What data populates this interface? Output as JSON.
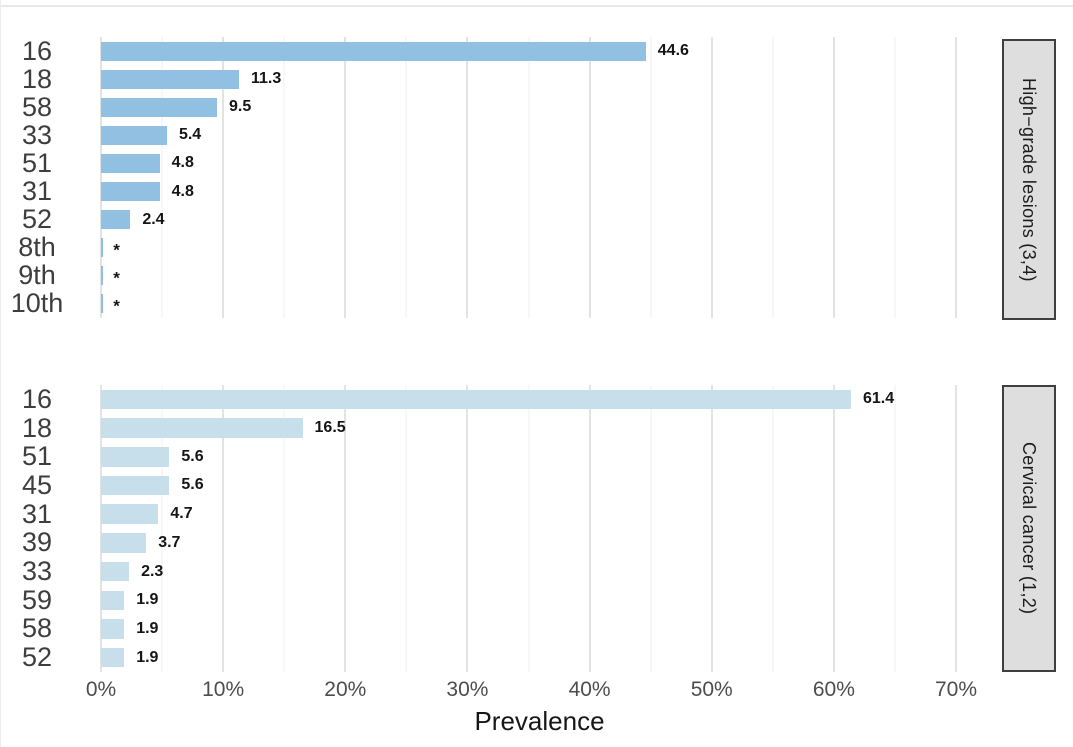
{
  "figure": {
    "xlabel": "Prevalence",
    "x_ticks": [
      "0%",
      "10%",
      "20%",
      "30%",
      "40%",
      "50%",
      "60%",
      "70%"
    ],
    "x_tick_values": [
      0,
      10,
      20,
      30,
      40,
      50,
      60,
      70
    ],
    "x_max": 71.8,
    "grid_minor_step": 5,
    "colors": {
      "bar_top_facet": "#92c0e3",
      "bar_bottom_facet": "#c7dfeb",
      "strip_background": "#dedede",
      "strip_border": "#3f3f3f",
      "gridline_major": "#e3e3e3",
      "gridline_minor": "#efefef",
      "category_text": "#3e3e3e",
      "tick_text": "#4d4d4d",
      "value_text": "#151515"
    }
  },
  "chart_data": [
    {
      "type": "bar",
      "orientation": "horizontal",
      "facet": "High−grade lesions (3,4)",
      "categories": [
        "16",
        "18",
        "58",
        "33",
        "51",
        "31",
        "52",
        "8th",
        "9th",
        "10th"
      ],
      "values": [
        44.6,
        11.3,
        9.5,
        5.4,
        4.8,
        4.8,
        2.4,
        null,
        null,
        null
      ],
      "bar_labels": [
        "44.6",
        "11.3",
        "9.5",
        "5.4",
        "4.8",
        "4.8",
        "2.4",
        "*",
        "*",
        "*"
      ],
      "bar_color": "#92c0e3",
      "xlabel": "Prevalence",
      "xlim": [
        0,
        71.8
      ],
      "x_tick_labels": [
        "0%",
        "10%",
        "20%",
        "30%",
        "40%",
        "50%",
        "60%",
        "70%"
      ],
      "grid": true,
      "legend": false
    },
    {
      "type": "bar",
      "orientation": "horizontal",
      "facet": "Cervical cancer (1,2)",
      "categories": [
        "16",
        "18",
        "51",
        "45",
        "31",
        "39",
        "33",
        "59",
        "58",
        "52"
      ],
      "values": [
        61.4,
        16.5,
        5.6,
        5.6,
        4.7,
        3.7,
        2.3,
        1.9,
        1.9,
        1.9
      ],
      "bar_labels": [
        "61.4",
        "16.5",
        "5.6",
        "5.6",
        "4.7",
        "3.7",
        "2.3",
        "1.9",
        "1.9",
        "1.9"
      ],
      "bar_color": "#c7dfeb",
      "xlabel": "Prevalence",
      "xlim": [
        0,
        71.8
      ],
      "x_tick_labels": [
        "0%",
        "10%",
        "20%",
        "30%",
        "40%",
        "50%",
        "60%",
        "70%"
      ],
      "grid": true,
      "legend": false
    }
  ]
}
